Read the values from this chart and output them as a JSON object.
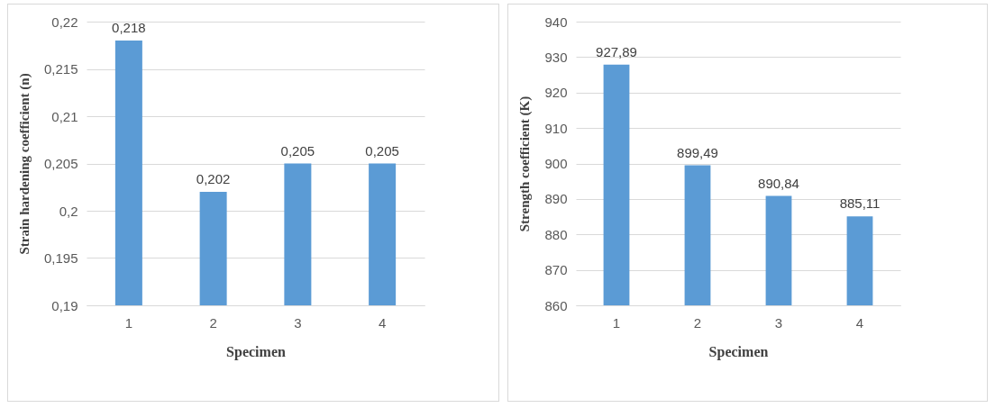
{
  "chart_data": [
    {
      "type": "bar",
      "categories": [
        "1",
        "2",
        "3",
        "4"
      ],
      "values": [
        0.218,
        0.202,
        0.205,
        0.205
      ],
      "color": "#5b9bd5",
      "value_labels": [
        "0,218",
        "0,202",
        "0,205",
        "0,205"
      ],
      "xlabel": "Specimen",
      "ylabel": "Strain hardening coefficient (n)",
      "ylim": [
        0.19,
        0.22
      ],
      "yticks": [
        {
          "value": 0.19,
          "label": "0,19"
        },
        {
          "value": 0.195,
          "label": "0,195"
        },
        {
          "value": 0.2,
          "label": "0,2"
        },
        {
          "value": 0.205,
          "label": "0,205"
        },
        {
          "value": 0.21,
          "label": "0,21"
        },
        {
          "value": 0.215,
          "label": "0,215"
        },
        {
          "value": 0.22,
          "label": "0,22"
        }
      ],
      "grid": "y"
    },
    {
      "type": "bar",
      "categories": [
        "1",
        "2",
        "3",
        "4"
      ],
      "values": [
        927.89,
        899.49,
        890.84,
        885.11
      ],
      "color": "#5b9bd5",
      "value_labels": [
        "927,89",
        "899,49",
        "890,84",
        "885,11"
      ],
      "xlabel": "Specimen",
      "ylabel": "Strength coefficient (K)",
      "ylim": [
        860,
        940
      ],
      "yticks": [
        860,
        870,
        880,
        890,
        900,
        910,
        920,
        930,
        940
      ],
      "grid": "y"
    }
  ]
}
